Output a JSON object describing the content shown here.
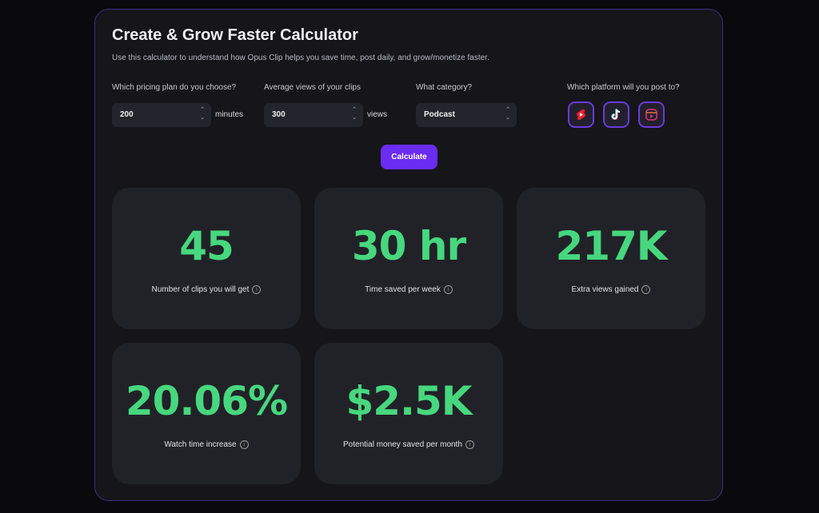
{
  "header": {
    "title": "Create & Grow Faster Calculator",
    "subtitle": "Use this calculator to understand how Opus Clip helps you save time, post daily, and grow/monetize faster."
  },
  "form": {
    "fields": [
      {
        "label": "Which pricing plan do you choose?",
        "value": "200",
        "unit": "minutes"
      },
      {
        "label": "Average views of your clips",
        "value": "300",
        "unit": "views"
      },
      {
        "label": "What category?",
        "value": "Podcast"
      }
    ],
    "platform_label": "Which platform will you post to?",
    "button": "Calculate"
  },
  "results": [
    {
      "value": "45",
      "label": "Number of clips you will get"
    },
    {
      "value": "30 hr",
      "label": "Time saved per week"
    },
    {
      "value": "217K",
      "label": "Extra views gained"
    },
    {
      "value": "20.06%",
      "label": "Watch time increase"
    },
    {
      "value": "$2.5K",
      "label": "Potential money saved per month"
    }
  ]
}
